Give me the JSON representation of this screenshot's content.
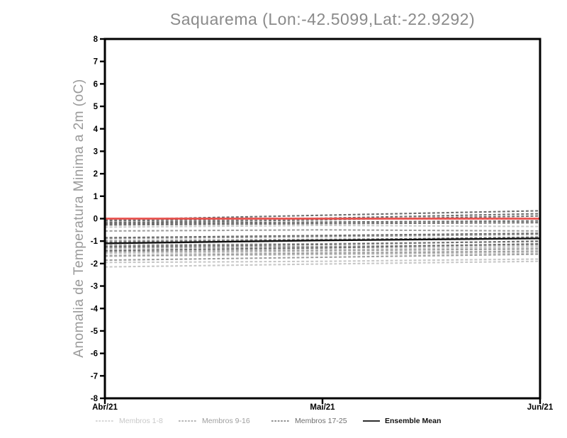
{
  "chart": {
    "title": "Saquarema (Lon:-42.5099,Lat:-22.9292)",
    "ylabel": "Anomalia de Temperatura Minima a 2m (oC)"
  },
  "chart_data": {
    "type": "line",
    "title": "Saquarema (Lon:-42.5099,Lat:-22.9292)",
    "xlabel": "",
    "ylabel": "Anomalia de Temperatura Minima a 2m (oC)",
    "ylim": [
      -8,
      8
    ],
    "ytick_labels": [
      "8",
      "7",
      "6",
      "5",
      "4",
      "3",
      "2",
      "1",
      "0",
      "-1",
      "-2",
      "-3",
      "-4",
      "-5",
      "-6",
      "-7",
      "-8"
    ],
    "x_categories": [
      "Abr/21",
      "Mai/21",
      "Jun/21"
    ],
    "grid": false,
    "legend_position": "bottom",
    "colors": {
      "membros_1_8": "#c8c8c8",
      "membros_9_16": "#9e9e9e",
      "membros_17_25": "#6f6f6f",
      "ensemble_mean": "#111111",
      "zero_line": "#e8514d"
    },
    "series": [
      {
        "name": "Membro 1",
        "group": "1-8",
        "values": [
          -0.38,
          -0.3,
          -0.35
        ]
      },
      {
        "name": "Membro 2",
        "group": "1-8",
        "values": [
          -1.22,
          -1.25,
          -1.2
        ]
      },
      {
        "name": "Membro 3",
        "group": "1-8",
        "values": [
          -1.4,
          -1.38,
          -1.3
        ]
      },
      {
        "name": "Membro 4",
        "group": "1-8",
        "values": [
          -1.55,
          -1.5,
          -1.45
        ]
      },
      {
        "name": "Membro 5",
        "group": "1-8",
        "values": [
          -1.68,
          -1.6,
          -1.52
        ]
      },
      {
        "name": "Membro 6",
        "group": "1-8",
        "values": [
          -1.95,
          -1.9,
          -1.8
        ]
      },
      {
        "name": "Membro 7",
        "group": "1-8",
        "values": [
          -2.15,
          -2.02,
          -1.9
        ]
      },
      {
        "name": "Membro 8",
        "group": "1-8",
        "values": [
          -1.32,
          -1.3,
          -1.25
        ]
      },
      {
        "name": "Membro 9",
        "group": "9-16",
        "values": [
          -0.55,
          -0.5,
          -0.55
        ]
      },
      {
        "name": "Membro 10",
        "group": "9-16",
        "values": [
          -0.88,
          -0.8,
          -0.7
        ]
      },
      {
        "name": "Membro 11",
        "group": "9-16",
        "values": [
          -0.98,
          -0.92,
          -0.85
        ]
      },
      {
        "name": "Membro 12",
        "group": "9-16",
        "values": [
          -1.18,
          -1.12,
          -1.02
        ]
      },
      {
        "name": "Membro 13",
        "group": "9-16",
        "values": [
          -1.3,
          -1.24,
          -1.15
        ]
      },
      {
        "name": "Membro 14",
        "group": "9-16",
        "values": [
          -1.48,
          -1.42,
          -1.35
        ]
      },
      {
        "name": "Membro 15",
        "group": "9-16",
        "values": [
          -1.65,
          -1.55,
          -1.45
        ]
      },
      {
        "name": "Membro 16",
        "group": "9-16",
        "values": [
          -1.85,
          -1.72,
          -1.58
        ]
      },
      {
        "name": "Membro 17",
        "group": "17-25",
        "values": [
          -0.05,
          0.15,
          0.35
        ]
      },
      {
        "name": "Membro 18",
        "group": "17-25",
        "values": [
          -0.1,
          0.02,
          0.22
        ]
      },
      {
        "name": "Membro 19",
        "group": "17-25",
        "values": [
          -0.18,
          -0.05,
          0.12
        ]
      },
      {
        "name": "Membro 20",
        "group": "17-25",
        "values": [
          -0.22,
          -0.15,
          -0.1
        ]
      },
      {
        "name": "Membro 21",
        "group": "17-25",
        "values": [
          -0.28,
          -0.22,
          -0.18
        ]
      },
      {
        "name": "Membro 22",
        "group": "17-25",
        "values": [
          -0.85,
          -0.75,
          -0.65
        ]
      },
      {
        "name": "Membro 23",
        "group": "17-25",
        "values": [
          -1.05,
          -0.95,
          -0.82
        ]
      },
      {
        "name": "Membro 24",
        "group": "17-25",
        "values": [
          -1.25,
          -1.15,
          -1.0
        ]
      },
      {
        "name": "Membro 25",
        "group": "17-25",
        "values": [
          -1.42,
          -1.3,
          -1.12
        ]
      }
    ],
    "ensemble_mean": {
      "name": "Ensemble Mean",
      "values": [
        -1.1,
        -0.97,
        -0.88
      ]
    },
    "zero_line": {
      "name": "Zero reference",
      "values": [
        0,
        0,
        0
      ]
    }
  },
  "legend": {
    "items": [
      {
        "label": "Membros 1-8",
        "color": "#c8c8c8",
        "line_style": "dashed"
      },
      {
        "label": "Membros 9-16",
        "color": "#9e9e9e",
        "line_style": "dashed"
      },
      {
        "label": "Membros 17-25",
        "color": "#6f6f6f",
        "line_style": "dashed"
      },
      {
        "label": "Ensemble Mean",
        "color": "#111111",
        "line_style": "solid"
      }
    ]
  }
}
